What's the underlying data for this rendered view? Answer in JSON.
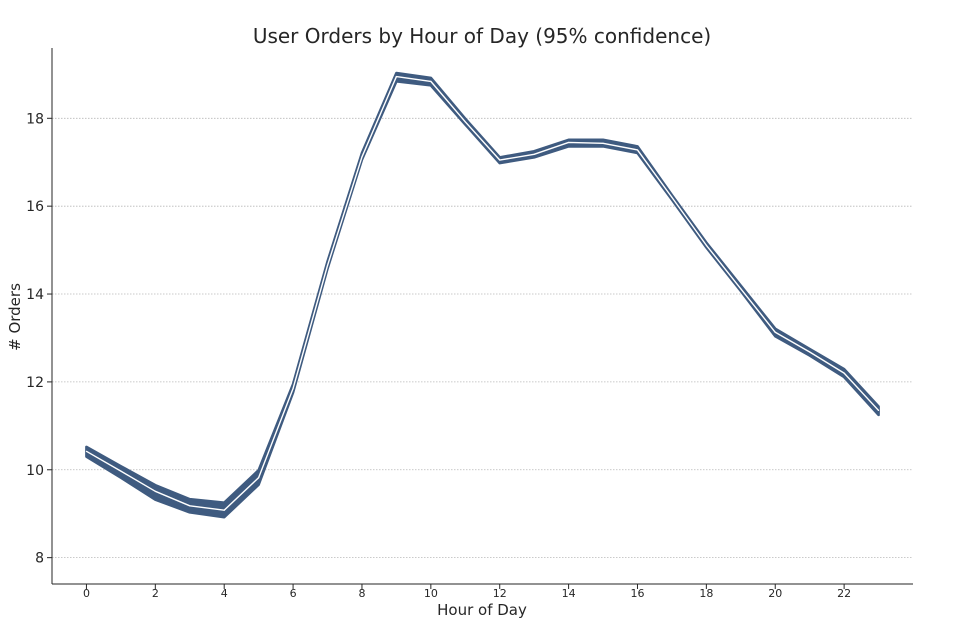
{
  "chart_data": {
    "type": "line",
    "title": "User Orders by Hour of Day (95% confidence)",
    "xlabel": "Hour of Day",
    "ylabel": "# Orders",
    "xlim": [
      -1,
      24
    ],
    "ylim": [
      7.4,
      19.6
    ],
    "x_ticks": [
      0,
      2,
      4,
      6,
      8,
      10,
      12,
      14,
      16,
      18,
      20,
      22
    ],
    "y_ticks": [
      8,
      10,
      12,
      14,
      16,
      18
    ],
    "grid": "horizontal",
    "colors": {
      "band": "#3f5b80",
      "mean_line": "#ffffff",
      "text": "#262626"
    },
    "series": [
      {
        "name": "mean",
        "x": [
          0,
          1,
          2,
          3,
          4,
          5,
          6,
          7,
          8,
          9,
          10,
          11,
          12,
          13,
          14,
          15,
          16,
          17,
          18,
          19,
          20,
          21,
          22,
          23
        ],
        "values": [
          10.42,
          9.97,
          9.51,
          9.18,
          9.08,
          9.82,
          11.85,
          14.65,
          17.12,
          18.95,
          18.84,
          17.92,
          17.05,
          17.18,
          17.45,
          17.43,
          17.28,
          16.2,
          15.11,
          14.12,
          13.13,
          12.68,
          12.2,
          11.35
        ]
      },
      {
        "name": "ci_lower",
        "x": [
          0,
          1,
          2,
          3,
          4,
          5,
          6,
          7,
          8,
          9,
          10,
          11,
          12,
          13,
          14,
          15,
          16,
          17,
          18,
          19,
          20,
          21,
          22,
          23
        ],
        "values": [
          10.3,
          9.82,
          9.32,
          9.03,
          8.92,
          9.66,
          11.76,
          14.58,
          17.06,
          18.84,
          18.75,
          17.86,
          16.98,
          17.11,
          17.36,
          17.36,
          17.21,
          16.15,
          15.06,
          14.07,
          13.04,
          12.6,
          12.11,
          11.25
        ]
      },
      {
        "name": "ci_upper",
        "x": [
          0,
          1,
          2,
          3,
          4,
          5,
          6,
          7,
          8,
          9,
          10,
          11,
          12,
          13,
          14,
          15,
          16,
          17,
          18,
          19,
          20,
          21,
          22,
          23
        ],
        "values": [
          10.52,
          10.08,
          9.65,
          9.33,
          9.25,
          9.99,
          11.95,
          14.74,
          17.21,
          19.03,
          18.92,
          17.99,
          17.11,
          17.25,
          17.51,
          17.51,
          17.36,
          16.25,
          15.17,
          14.19,
          13.21,
          12.75,
          12.29,
          11.44
        ]
      }
    ]
  }
}
